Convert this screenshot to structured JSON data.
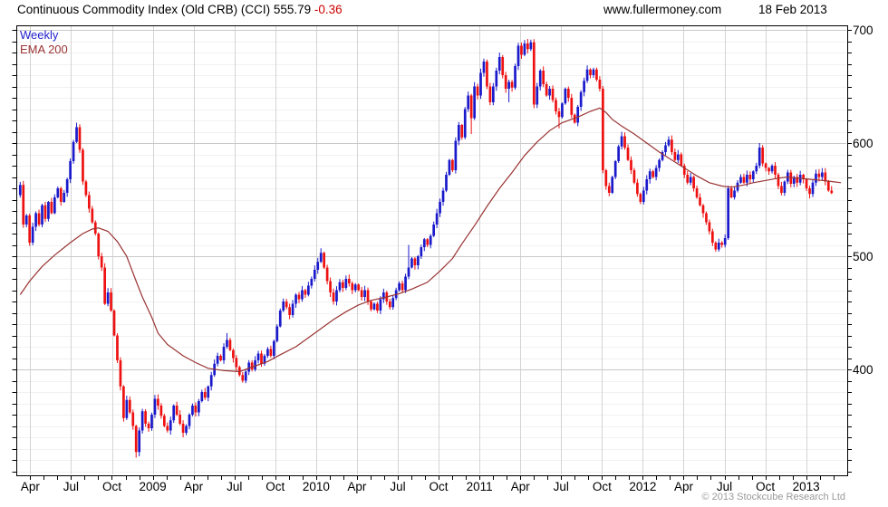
{
  "header": {
    "title": "Continuous Commodity Index (Old CRB) (CCI) 555.79",
    "change": "-0.36",
    "website": "www.fullermoney.com",
    "date": "18 Feb 2013"
  },
  "legend": {
    "weekly": "Weekly",
    "ema": "EMA 200"
  },
  "footer": {
    "copyright": "© 2013 Stockcube Research Ltd"
  },
  "colors": {
    "up": "#1a1acc",
    "down": "#ee1111",
    "ema": "#993333",
    "grid_major": "#c9c9c9",
    "grid_minor": "#f1f1f1",
    "grid_vert": "#d4d4d4",
    "axis": "#000000",
    "change_text": "#cc0000",
    "legend_weekly": "#2222cc",
    "copyright": "#9a9a9a"
  },
  "chart_data": {
    "type": "candlestick",
    "title": "Continuous Commodity Index (Old CRB) (CCI)",
    "timeframe": "Weekly",
    "last_price": 555.79,
    "change": -0.36,
    "x_start": "Mar 2008",
    "x_end": "Feb 2013",
    "legend_position": "top-left",
    "grid": true,
    "first_open": 554,
    "closes_weekly": [
      563,
      528,
      536,
      512,
      526,
      538,
      528,
      545,
      533,
      548,
      538,
      552,
      560,
      548,
      556,
      568,
      584,
      601,
      614,
      594,
      566,
      554,
      542,
      530,
      520,
      500,
      490,
      458,
      468,
      452,
      430,
      408,
      385,
      357,
      373,
      362,
      350,
      327,
      346,
      363,
      352,
      348,
      360,
      374,
      368,
      359,
      350,
      346,
      355,
      368,
      360,
      352,
      344,
      350,
      360,
      368,
      362,
      372,
      380,
      375,
      385,
      395,
      405,
      412,
      408,
      420,
      426,
      417,
      410,
      402,
      395,
      390,
      398,
      406,
      400,
      408,
      414,
      405,
      412,
      418,
      412,
      425,
      438,
      452,
      460,
      455,
      448,
      458,
      466,
      462,
      470,
      466,
      474,
      480,
      488,
      495,
      503,
      490,
      478,
      468,
      460,
      470,
      477,
      472,
      480,
      476,
      470,
      475,
      470,
      464,
      470,
      460,
      453,
      458,
      452,
      462,
      468,
      460,
      455,
      463,
      470,
      476,
      470,
      482,
      490,
      498,
      492,
      500,
      508,
      515,
      510,
      518,
      528,
      538,
      548,
      558,
      572,
      585,
      576,
      602,
      616,
      605,
      630,
      642,
      622,
      650,
      642,
      662,
      672,
      650,
      636,
      650,
      664,
      676,
      660,
      648,
      654,
      649,
      668,
      686,
      678,
      688,
      683,
      689,
      634,
      650,
      664,
      652,
      642,
      648,
      638,
      628,
      623,
      635,
      648,
      640,
      625,
      618,
      632,
      645,
      655,
      665,
      660,
      665,
      656,
      648,
      576,
      562,
      556,
      570,
      584,
      597,
      606,
      596,
      585,
      576,
      565,
      555,
      548,
      558,
      568,
      575,
      570,
      578,
      585,
      592,
      598,
      603,
      592,
      585,
      590,
      580,
      572,
      565,
      570,
      560,
      552,
      545,
      538,
      530,
      522,
      512,
      506,
      512,
      510,
      516,
      560,
      552,
      558,
      565,
      570,
      565,
      572,
      568,
      575,
      580,
      596,
      582,
      578,
      575,
      580,
      572,
      562,
      556,
      566,
      574,
      564,
      570,
      565,
      572,
      568,
      560,
      555,
      565,
      573,
      570,
      574,
      566,
      558,
      555.79
    ],
    "wick_overrides": {
      "18": [
        618,
        null
      ],
      "37": [
        null,
        322
      ],
      "52": [
        null,
        340
      ],
      "66": [
        432,
        null
      ],
      "96": [
        507,
        null
      ],
      "124": [
        510,
        null
      ],
      "144": [
        null,
        608
      ],
      "156": [
        null,
        636
      ],
      "162": [
        692,
        null
      ],
      "172": [
        null,
        613
      ],
      "188": [
        null,
        553
      ],
      "198": [
        null,
        546
      ],
      "207": [
        606,
        null
      ],
      "222": [
        null,
        504
      ],
      "236": [
        600,
        null
      ],
      "252": [
        null,
        551
      ]
    },
    "ema_200": {
      "label": "EMA 200",
      "anchors": [
        [
          0,
          466
        ],
        [
          3,
          478
        ],
        [
          7,
          491
        ],
        [
          11,
          501
        ],
        [
          16,
          512
        ],
        [
          20,
          520
        ],
        [
          23,
          524
        ],
        [
          25,
          525
        ],
        [
          28,
          522
        ],
        [
          31,
          513
        ],
        [
          34,
          500
        ],
        [
          37,
          478
        ],
        [
          39,
          464
        ],
        [
          42,
          446
        ],
        [
          44,
          432
        ],
        [
          47,
          422
        ],
        [
          52,
          412
        ],
        [
          56,
          406
        ],
        [
          60,
          401
        ],
        [
          65,
          399
        ],
        [
          70,
          398
        ],
        [
          74,
          402
        ],
        [
          79,
          407
        ],
        [
          83,
          413
        ],
        [
          88,
          420
        ],
        [
          92,
          428
        ],
        [
          96,
          436
        ],
        [
          100,
          444
        ],
        [
          104,
          451
        ],
        [
          108,
          457
        ],
        [
          112,
          461
        ],
        [
          117,
          464
        ],
        [
          121,
          467
        ],
        [
          125,
          471
        ],
        [
          130,
          477
        ],
        [
          134,
          487
        ],
        [
          138,
          498
        ],
        [
          141,
          511
        ],
        [
          145,
          527
        ],
        [
          149,
          544
        ],
        [
          153,
          560
        ],
        [
          157,
          574
        ],
        [
          161,
          589
        ],
        [
          165,
          601
        ],
        [
          169,
          611
        ],
        [
          173,
          618
        ],
        [
          178,
          623
        ],
        [
          182,
          628
        ],
        [
          185,
          631
        ],
        [
          187,
          627
        ],
        [
          189,
          621
        ],
        [
          192,
          615
        ],
        [
          196,
          608
        ],
        [
          200,
          600
        ],
        [
          204,
          592
        ],
        [
          208,
          585
        ],
        [
          212,
          578
        ],
        [
          216,
          571
        ],
        [
          220,
          565
        ],
        [
          224,
          562
        ],
        [
          227,
          561
        ],
        [
          231,
          563
        ],
        [
          234,
          565
        ],
        [
          238,
          567
        ],
        [
          242,
          569
        ],
        [
          245,
          570
        ],
        [
          248,
          569
        ],
        [
          252,
          568
        ],
        [
          256,
          567
        ],
        [
          259,
          566
        ],
        [
          262,
          565
        ]
      ]
    },
    "y_axis": {
      "max": 704,
      "min": 306.4,
      "labels": [
        700,
        600,
        500,
        400
      ],
      "minor_step": 10
    },
    "x_axis": {
      "labels": [
        "Apr",
        "Jul",
        "Oct",
        "2009",
        "Apr",
        "Jul",
        "Oct",
        "2010",
        "Apr",
        "Jul",
        "Oct",
        "2011",
        "Apr",
        "Jul",
        "Oct",
        "2012",
        "Apr",
        "Jul",
        "Oct",
        "2013"
      ],
      "first_label_week": 3.2,
      "weeks_per_label": 13.036,
      "minor_tick_weeks": 4.3452
    }
  }
}
